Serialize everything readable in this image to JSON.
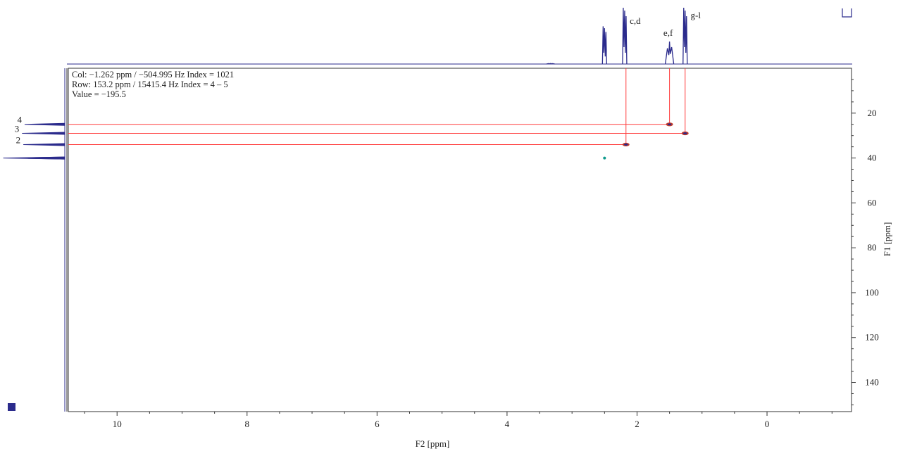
{
  "cursor_info": {
    "col": "Col: −1.262 ppm / −504.995 Hz Index = 1021",
    "row": "Row: 153.2 ppm / 15415.4 Hz Index = 4 – 5",
    "value": "Value = −195.5"
  },
  "colors": {
    "spectrum": "#2b2b8c",
    "crosshair": "#ff3b3b",
    "peak_outer": "#c0392b",
    "peak_inner": "#2b2b8c",
    "teal_peak": "#0e9a8c",
    "frame": "#333333"
  },
  "chart_data": {
    "type": "scatter",
    "title": "",
    "xlabel": "F2 [ppm]",
    "ylabel": "F1 [ppm]",
    "xlim": [
      10.75,
      -1.3
    ],
    "ylim": [
      0,
      153
    ],
    "x_ticks": [
      "10",
      "8",
      "6",
      "4",
      "2",
      "0"
    ],
    "x_tick_values": [
      10,
      8,
      6,
      4,
      2,
      0
    ],
    "y_ticks": [
      "20",
      "40",
      "60",
      "80",
      "100",
      "120",
      "140"
    ],
    "y_tick_values": [
      20,
      40,
      60,
      80,
      100,
      120,
      140
    ],
    "cross_peaks": [
      {
        "h": 2.17,
        "c": 34.0,
        "label": "2",
        "h_assignment": "c,d"
      },
      {
        "h": 1.5,
        "c": 25.0,
        "label": "4",
        "h_assignment": "e,f"
      },
      {
        "h": 1.26,
        "c": 29.0,
        "label": "3",
        "h_assignment": "g-l"
      }
    ],
    "other_peaks": [
      {
        "h": 2.5,
        "c": 40.0
      }
    ],
    "h1_projection_peaks": [
      {
        "ppm": 2.5,
        "height": 0.67
      },
      {
        "ppm": 2.19,
        "height": 1.0,
        "label": "c,d"
      },
      {
        "ppm": 1.5,
        "height": 0.4,
        "label": "e,f"
      },
      {
        "ppm": 1.26,
        "height": 1.0,
        "label": "g-l"
      },
      {
        "ppm": 3.33,
        "height": 0.01
      }
    ],
    "c13_projection_peaks": [
      {
        "ppm": 25.0,
        "length": 0.62,
        "label": "4"
      },
      {
        "ppm": 29.0,
        "length": 0.66,
        "label": "3"
      },
      {
        "ppm": 34.0,
        "length": 0.64,
        "label": "2"
      },
      {
        "ppm": 40.0,
        "length": 0.95
      }
    ]
  }
}
